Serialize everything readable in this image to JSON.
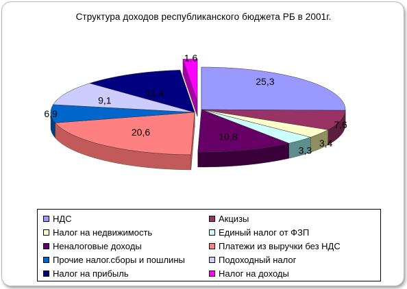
{
  "chart_data": {
    "type": "pie",
    "title": "Структура доходов республиканского бюджета  РБ в 2001г.",
    "legend_position": "bottom",
    "slices": [
      {
        "name": "НДС",
        "value": 25.3,
        "label": "25,3",
        "color": "#9999ff",
        "side": "#6b6bc2"
      },
      {
        "name": "Акцизы",
        "value": 7.6,
        "label": "7,6",
        "color": "#993366",
        "side": "#5e1d3e"
      },
      {
        "name": "Налог на недвижимость",
        "value": 3.4,
        "label": "3,4",
        "color": "#ffffcc",
        "side": "#8f8f60"
      },
      {
        "name": "Единый налог от ФЗП",
        "value": 3.3,
        "label": "3,3",
        "color": "#ccffff",
        "side": "#5f8e8e"
      },
      {
        "name": "Неналоговые доходы",
        "value": 10.8,
        "label": "10,8",
        "color": "#660066",
        "side": "#3a003a"
      },
      {
        "name": "Платежи из выручки без НДС",
        "value": 20.6,
        "label": "20,6",
        "color": "#ff8080",
        "side": "#c25a5a"
      },
      {
        "name": "Прочие налог.сборы и пошлины",
        "value": 6.9,
        "label": "6,9",
        "color": "#0066cc",
        "side": "#003f82"
      },
      {
        "name": "Подоходный налог",
        "value": 9.1,
        "label": "9,1",
        "color": "#ccccff",
        "side": "#8f8fbf"
      },
      {
        "name": "Налог на прибыль",
        "value": 11.4,
        "label": "11,4",
        "color": "#000080",
        "side": "#00004a"
      },
      {
        "name": "Налог на доходы",
        "value": 1.6,
        "label": "1,6",
        "color": "#ff00ff",
        "side": "#a800a8"
      }
    ]
  }
}
